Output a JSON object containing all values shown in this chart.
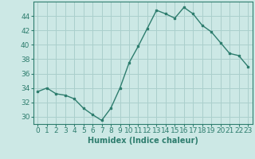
{
  "x": [
    0,
    1,
    2,
    3,
    4,
    5,
    6,
    7,
    8,
    9,
    10,
    11,
    12,
    13,
    14,
    15,
    16,
    17,
    18,
    19,
    20,
    21,
    22,
    23
  ],
  "y": [
    33.5,
    34.0,
    33.2,
    33.0,
    32.5,
    31.2,
    30.3,
    29.5,
    31.2,
    34.0,
    37.5,
    39.8,
    42.3,
    44.8,
    44.3,
    43.7,
    45.2,
    44.3,
    42.7,
    41.8,
    40.3,
    38.8,
    38.5,
    37.0
  ],
  "line_color": "#2e7d6e",
  "marker": "s",
  "marker_size": 2,
  "bg_color": "#cce8e5",
  "grid_color": "#aacfcc",
  "xlabel": "Humidex (Indice chaleur)",
  "ylim": [
    29,
    46
  ],
  "yticks": [
    30,
    32,
    34,
    36,
    38,
    40,
    42,
    44
  ],
  "xticks": [
    0,
    1,
    2,
    3,
    4,
    5,
    6,
    7,
    8,
    9,
    10,
    11,
    12,
    13,
    14,
    15,
    16,
    17,
    18,
    19,
    20,
    21,
    22,
    23
  ],
  "xlabel_fontsize": 7,
  "tick_fontsize": 6.5,
  "line_width": 1.0
}
